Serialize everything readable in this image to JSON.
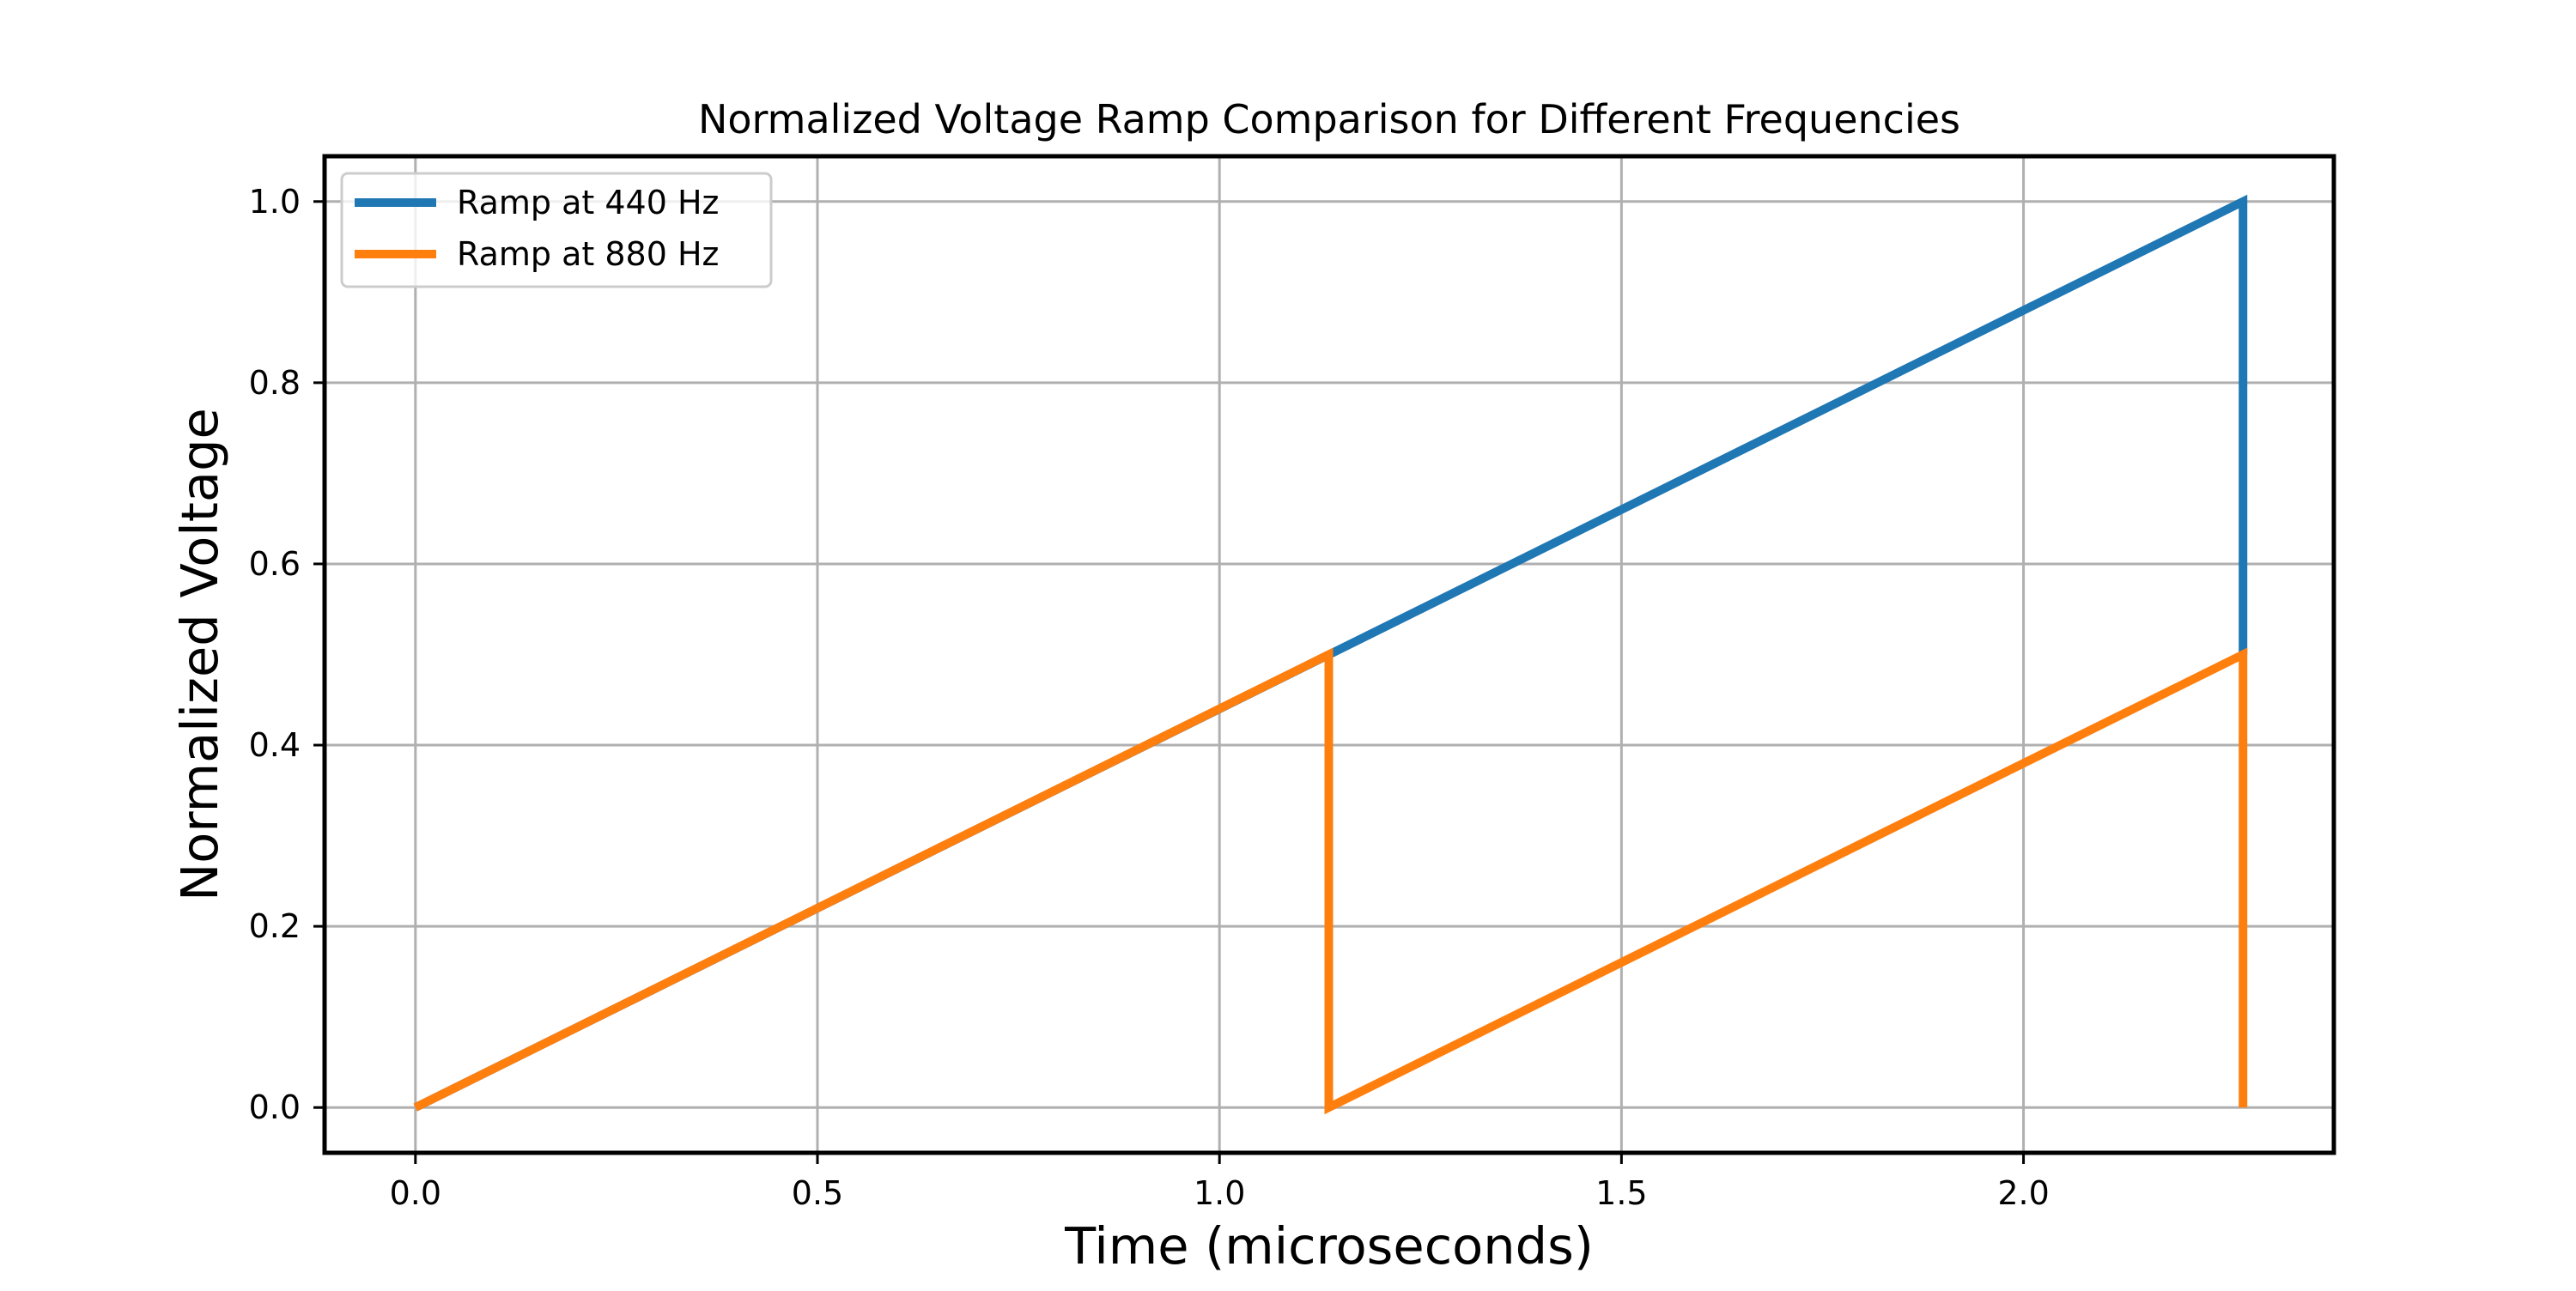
{
  "chart_data": {
    "type": "line",
    "title": "Normalized Voltage Ramp Comparison for Different Frequencies",
    "xlabel": "Time (microseconds)",
    "ylabel": "Normalized Voltage",
    "xlim": [
      -0.113,
      2.386
    ],
    "ylim": [
      -0.05,
      1.05
    ],
    "x_ticks": [
      0.0,
      0.5,
      1.0,
      1.5,
      2.0
    ],
    "x_tick_labels": [
      "0.0",
      "0.5",
      "1.0",
      "1.5",
      "2.0"
    ],
    "y_ticks": [
      0.0,
      0.2,
      0.4,
      0.6,
      0.8,
      1.0
    ],
    "y_tick_labels": [
      "0.0",
      "0.2",
      "0.4",
      "0.6",
      "0.8",
      "1.0"
    ],
    "grid": true,
    "legend_position": "upper-left",
    "series": [
      {
        "name": "Ramp at 440 Hz",
        "color": "#1f77b4",
        "points": [
          [
            0.0,
            0.0
          ],
          [
            2.273,
            1.0
          ],
          [
            2.273,
            0.5
          ]
        ]
      },
      {
        "name": "Ramp at 880 Hz",
        "color": "#ff7f0e",
        "points": [
          [
            0.0,
            0.0
          ],
          [
            1.136,
            0.5
          ],
          [
            1.136,
            0.0
          ],
          [
            2.273,
            0.5
          ],
          [
            2.273,
            0.0
          ]
        ]
      }
    ]
  }
}
